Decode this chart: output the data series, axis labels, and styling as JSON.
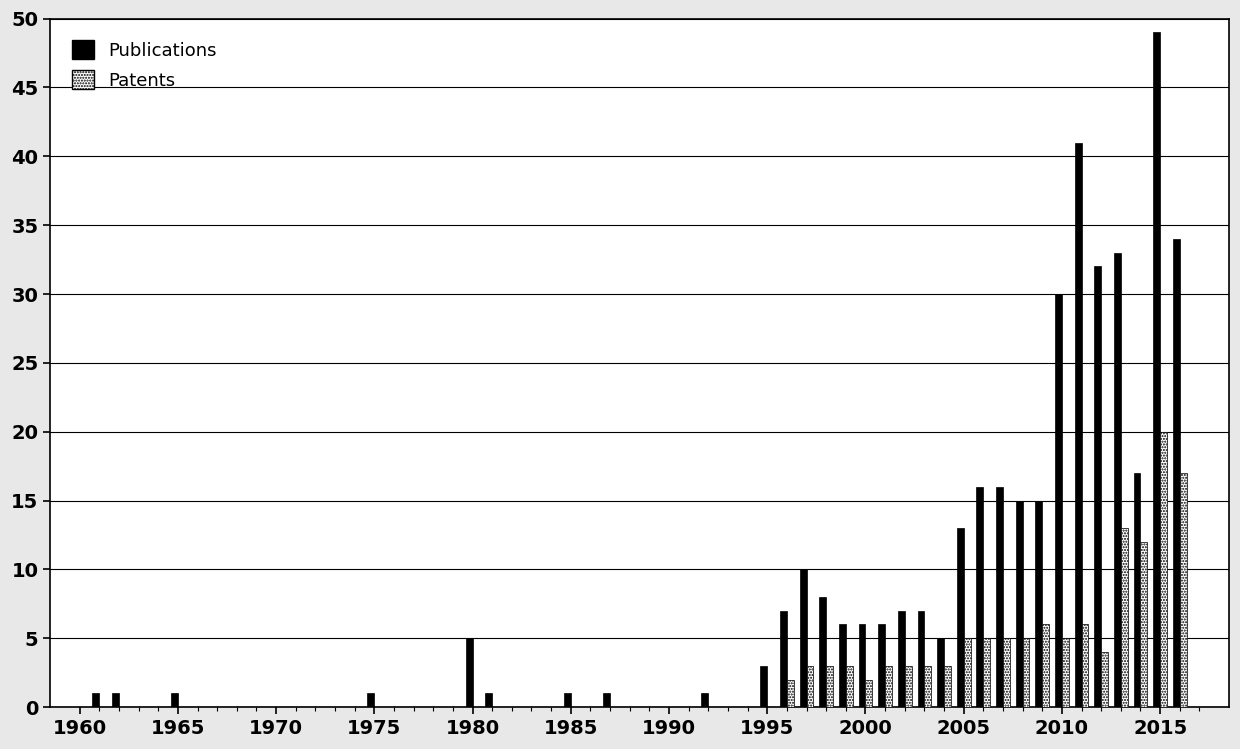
{
  "years": [
    1960,
    1961,
    1962,
    1963,
    1964,
    1965,
    1966,
    1967,
    1968,
    1969,
    1970,
    1971,
    1972,
    1973,
    1974,
    1975,
    1976,
    1977,
    1978,
    1979,
    1980,
    1981,
    1982,
    1983,
    1984,
    1985,
    1986,
    1987,
    1988,
    1989,
    1990,
    1991,
    1992,
    1993,
    1994,
    1995,
    1996,
    1997,
    1998,
    1999,
    2000,
    2001,
    2002,
    2003,
    2004,
    2005,
    2006,
    2007,
    2008,
    2009,
    2010,
    2011,
    2012,
    2013,
    2014,
    2015,
    2016,
    2017
  ],
  "publications": [
    0,
    1,
    1,
    0,
    0,
    1,
    0,
    0,
    0,
    0,
    0,
    0,
    0,
    0,
    0,
    1,
    0,
    0,
    0,
    0,
    5,
    1,
    0,
    0,
    0,
    1,
    0,
    1,
    0,
    0,
    0,
    0,
    1,
    0,
    0,
    3,
    7,
    10,
    8,
    6,
    6,
    6,
    7,
    7,
    5,
    13,
    16,
    16,
    15,
    15,
    30,
    41,
    32,
    33,
    17,
    49,
    34,
    0
  ],
  "patents": [
    0,
    0,
    0,
    0,
    0,
    0,
    0,
    0,
    0,
    0,
    0,
    0,
    0,
    0,
    0,
    0,
    0,
    0,
    0,
    0,
    0,
    0,
    0,
    0,
    0,
    0,
    0,
    0,
    0,
    0,
    0,
    0,
    0,
    0,
    0,
    0,
    2,
    3,
    3,
    3,
    2,
    3,
    3,
    3,
    3,
    5,
    5,
    5,
    5,
    6,
    5,
    6,
    4,
    13,
    12,
    20,
    17,
    0
  ],
  "ylim": [
    0,
    50
  ],
  "yticks": [
    0,
    5,
    10,
    15,
    20,
    25,
    30,
    35,
    40,
    45,
    50
  ],
  "xticks": [
    1960,
    1965,
    1970,
    1975,
    1980,
    1985,
    1990,
    1995,
    2000,
    2005,
    2010,
    2015
  ],
  "pub_color": "#000000",
  "pat_hatch": "....",
  "background_color": "#ffffff",
  "bar_width": 0.35,
  "legend_pub": "Publications",
  "legend_pat": "Patents",
  "xlim_left": 1958.5,
  "xlim_right": 2018.5
}
